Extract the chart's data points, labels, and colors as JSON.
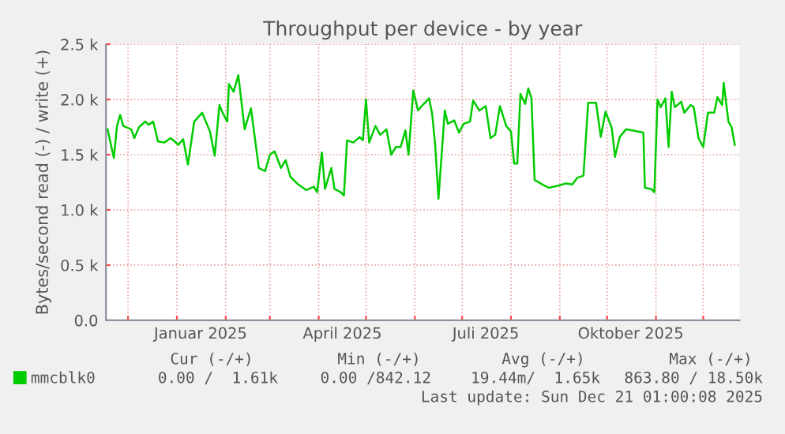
{
  "chart_data": {
    "type": "line",
    "title": "Throughput per device - by year",
    "ylabel": "Bytes/second read (-) / write (+)",
    "x": [
      "2024-11-18",
      "2024-11-22",
      "2024-11-24",
      "2024-11-26",
      "2024-11-28",
      "2024-12-03",
      "2024-12-05",
      "2024-12-08",
      "2024-12-12",
      "2024-12-14",
      "2024-12-17",
      "2024-12-20",
      "2024-12-24",
      "2024-12-28",
      "2025-01-02",
      "2025-01-05",
      "2025-01-08",
      "2025-01-12",
      "2025-01-17",
      "2025-01-22",
      "2025-01-25",
      "2025-01-28",
      "2025-01-30",
      "2025-02-02",
      "2025-02-03",
      "2025-02-06",
      "2025-02-09",
      "2025-02-13",
      "2025-02-17",
      "2025-02-22",
      "2025-02-26",
      "2025-03-01",
      "2025-03-04",
      "2025-03-08",
      "2025-03-11",
      "2025-03-14",
      "2025-03-19",
      "2025-03-24",
      "2025-03-29",
      "2025-03-31",
      "2025-04-03",
      "2025-04-05",
      "2025-04-09",
      "2025-04-11",
      "2025-04-15",
      "2025-04-17",
      "2025-04-19",
      "2025-04-23",
      "2025-04-27",
      "2025-04-29",
      "2025-05-01",
      "2025-05-03",
      "2025-05-07",
      "2025-05-10",
      "2025-05-14",
      "2025-05-17",
      "2025-05-20",
      "2025-05-23",
      "2025-05-26",
      "2025-05-28",
      "2025-05-31",
      "2025-06-03",
      "2025-06-06",
      "2025-06-10",
      "2025-06-12",
      "2025-06-14",
      "2025-06-16",
      "2025-06-20",
      "2025-06-22",
      "2025-06-26",
      "2025-06-29",
      "2025-07-02",
      "2025-07-06",
      "2025-07-08",
      "2025-07-12",
      "2025-07-16",
      "2025-07-19",
      "2025-07-22",
      "2025-07-25",
      "2025-07-29",
      "2025-08-01",
      "2025-08-03",
      "2025-08-05",
      "2025-08-07",
      "2025-08-10",
      "2025-08-12",
      "2025-08-14",
      "2025-08-16",
      "2025-08-21",
      "2025-08-25",
      "2025-08-31",
      "2025-09-05",
      "2025-09-09",
      "2025-09-12",
      "2025-09-16",
      "2025-09-19",
      "2025-09-24",
      "2025-09-27",
      "2025-09-30",
      "2025-10-04",
      "2025-10-06",
      "2025-10-09",
      "2025-10-13",
      "2025-10-24",
      "2025-10-25",
      "2025-10-29",
      "2025-10-31",
      "2025-11-02",
      "2025-11-04",
      "2025-11-07",
      "2025-11-09",
      "2025-11-11",
      "2025-11-13",
      "2025-11-17",
      "2025-11-19",
      "2025-11-23",
      "2025-11-25",
      "2025-11-28",
      "2025-12-01",
      "2025-12-04",
      "2025-12-08",
      "2025-12-10",
      "2025-12-13",
      "2025-12-14",
      "2025-12-17",
      "2025-12-19",
      "2025-12-21"
    ],
    "series": [
      {
        "name": "mmcblk0",
        "color": "#00cc00",
        "values": [
          1730,
          1470,
          1760,
          1860,
          1760,
          1730,
          1650,
          1750,
          1800,
          1770,
          1800,
          1620,
          1610,
          1650,
          1590,
          1640,
          1410,
          1800,
          1880,
          1710,
          1490,
          1950,
          1880,
          1800,
          2140,
          2070,
          2220,
          1730,
          1920,
          1380,
          1350,
          1500,
          1530,
          1380,
          1450,
          1300,
          1230,
          1180,
          1210,
          1160,
          1520,
          1190,
          1380,
          1190,
          1160,
          1130,
          1630,
          1610,
          1660,
          1630,
          2000,
          1610,
          1760,
          1680,
          1730,
          1500,
          1570,
          1570,
          1720,
          1500,
          2080,
          1900,
          1950,
          2010,
          1870,
          1570,
          1100,
          1900,
          1780,
          1810,
          1700,
          1780,
          1800,
          1990,
          1900,
          1940,
          1650,
          1680,
          1940,
          1760,
          1710,
          1420,
          1420,
          2050,
          1960,
          2100,
          2010,
          1270,
          1230,
          1200,
          1220,
          1240,
          1230,
          1290,
          1310,
          1970,
          1970,
          1660,
          1890,
          1740,
          1480,
          1660,
          1730,
          1700,
          1200,
          1190,
          1160,
          2000,
          1930,
          2010,
          1570,
          2070,
          1930,
          1980,
          1880,
          1950,
          1930,
          1650,
          1570,
          1880,
          1880,
          2020,
          1950,
          2150,
          1800,
          1750,
          1590
        ]
      }
    ],
    "xlim": [
      "2024-11-17",
      "2025-12-24"
    ],
    "xticks": [
      {
        "value": "2024-12-01",
        "label": null
      },
      {
        "value": "2025-01-01",
        "label": null
      },
      {
        "value": "2025-01-16",
        "label": "Januar 2025"
      },
      {
        "value": "2025-02-01",
        "label": null
      },
      {
        "value": "2025-03-01",
        "label": null
      },
      {
        "value": "2025-04-01",
        "label": null
      },
      {
        "value": "2025-04-16",
        "label": "April 2025"
      },
      {
        "value": "2025-05-01",
        "label": null
      },
      {
        "value": "2025-06-01",
        "label": null
      },
      {
        "value": "2025-07-01",
        "label": null
      },
      {
        "value": "2025-07-16",
        "label": "Juli 2025"
      },
      {
        "value": "2025-08-01",
        "label": null
      },
      {
        "value": "2025-09-01",
        "label": null
      },
      {
        "value": "2025-10-01",
        "label": null
      },
      {
        "value": "2025-10-16",
        "label": "Oktober 2025"
      },
      {
        "value": "2025-11-01",
        "label": null
      },
      {
        "value": "2025-12-01",
        "label": null
      }
    ],
    "ylim": [
      0,
      2500
    ],
    "yticks": [
      {
        "value": 0,
        "label": "0.0"
      },
      {
        "value": 500,
        "label": "0.5 k"
      },
      {
        "value": 1000,
        "label": "1.0 k"
      },
      {
        "value": 1500,
        "label": "1.5 k"
      },
      {
        "value": 2000,
        "label": "2.0 k"
      },
      {
        "value": 2500,
        "label": "2.5 k"
      }
    ],
    "grid": true,
    "legend": "bottom left",
    "annotations": [
      "Cur (-/+)",
      "Min (-/+)",
      "Avg (-/+)",
      "Max (-/+)",
      "0.00 /  1.61k",
      "0.00 /842.12",
      "19.44m/  1.65k",
      "863.80 / 18.50k",
      "Last update: Sun Dec 21 01:00:08 2025"
    ]
  }
}
